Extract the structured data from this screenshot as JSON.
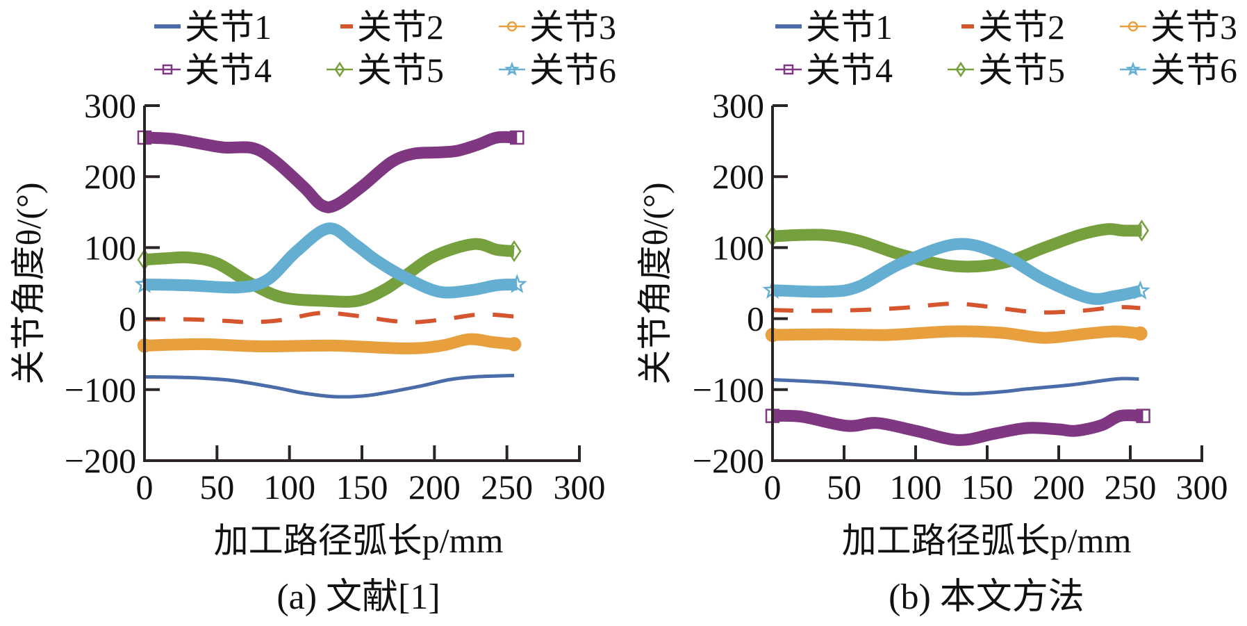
{
  "figure": {
    "panels": [
      "(a) 文献[1]",
      "(b) 本文方法"
    ]
  },
  "chart_data": [
    {
      "type": "line",
      "title": "(a) 文献[1]",
      "xlabel": "加工路径弧长p/mm",
      "ylabel": "关节角度θ/(°)",
      "xlim": [
        0,
        300
      ],
      "ylim": [
        -200,
        300
      ],
      "xticks": [
        "0",
        "50",
        "100",
        "150",
        "200",
        "250",
        "300"
      ],
      "yticks": [
        "300",
        "200",
        "100",
        "0",
        "−100",
        "−200"
      ],
      "grid": false,
      "legend_position": "top",
      "series": [
        {
          "name": "关节1",
          "color": "#4A6DAA",
          "style": "solid",
          "marker": "none",
          "x": [
            0,
            30,
            60,
            90,
            110,
            132,
            155,
            188,
            210,
            228,
            255
          ],
          "y": [
            -82,
            -83,
            -87,
            -97,
            -105,
            -110,
            -108,
            -96,
            -86,
            -82,
            -80
          ]
        },
        {
          "name": "关节2",
          "color": "#D5562E",
          "style": "dashed",
          "marker": "none",
          "x": [
            0,
            30,
            55,
            73,
            95,
            122,
            150,
            170,
            187,
            210,
            232,
            255
          ],
          "y": [
            -1,
            -1,
            -3,
            -5,
            -2,
            8,
            3,
            -3,
            -5,
            0,
            6,
            3
          ]
        },
        {
          "name": "关节3",
          "color": "#E8A03E",
          "style": "solid",
          "marker": "circle",
          "x": [
            0,
            40,
            80,
            130,
            180,
            205,
            224,
            240,
            255
          ],
          "y": [
            -38,
            -36,
            -39,
            -38,
            -42,
            -38,
            -29,
            -33,
            -36
          ]
        },
        {
          "name": "关节4",
          "color": "#7E3780",
          "style": "solid",
          "marker": "square",
          "x": [
            0,
            20,
            40,
            55,
            75,
            90,
            110,
            122,
            132,
            150,
            170,
            185,
            200,
            215,
            230,
            243,
            257
          ],
          "y": [
            255,
            253,
            246,
            241,
            240,
            222,
            185,
            160,
            160,
            186,
            220,
            232,
            234,
            236,
            245,
            255,
            255
          ]
        },
        {
          "name": "关节5",
          "color": "#76A03E",
          "style": "solid",
          "marker": "diamond",
          "x": [
            0,
            15,
            31,
            50,
            73,
            95,
            124,
            147,
            165,
            179,
            200,
            227,
            243,
            255
          ],
          "y": [
            83,
            85,
            86,
            78,
            50,
            30,
            25,
            25,
            40,
            59,
            88,
            105,
            97,
            95
          ]
        },
        {
          "name": "关节6",
          "color": "#64AED2",
          "style": "solid",
          "marker": "star",
          "x": [
            0,
            30,
            65,
            85,
            105,
            127,
            145,
            160,
            179,
            203,
            225,
            243,
            257
          ],
          "y": [
            48,
            47,
            44,
            55,
            95,
            127,
            105,
            82,
            59,
            38,
            40,
            47,
            48
          ]
        }
      ]
    },
    {
      "type": "line",
      "title": "(b) 本文方法",
      "xlabel": "加工路径弧长p/mm",
      "ylabel": "关节角度θ/(°)",
      "xlim": [
        0,
        300
      ],
      "ylim": [
        -200,
        300
      ],
      "xticks": [
        "0",
        "50",
        "100",
        "150",
        "200",
        "250",
        "300"
      ],
      "yticks": [
        "300",
        "200",
        "100",
        "0",
        "−100",
        "−200"
      ],
      "grid": false,
      "legend_position": "top",
      "series": [
        {
          "name": "关节1",
          "color": "#4A6DAA",
          "style": "solid",
          "marker": "none",
          "x": [
            0,
            40,
            80,
            110,
            135,
            160,
            178,
            210,
            240,
            256
          ],
          "y": [
            -86,
            -90,
            -97,
            -103,
            -106,
            -103,
            -99,
            -93,
            -85,
            -85
          ]
        },
        {
          "name": "关节2",
          "color": "#D5562E",
          "style": "dashed",
          "marker": "none",
          "x": [
            0,
            30,
            60,
            90,
            125,
            150,
            185,
            215,
            240,
            257
          ],
          "y": [
            12,
            11,
            12,
            15,
            21,
            17,
            9,
            11,
            16,
            15
          ]
        },
        {
          "name": "关节3",
          "color": "#E8A03E",
          "style": "solid",
          "marker": "circle",
          "x": [
            0,
            40,
            80,
            125,
            160,
            190,
            220,
            240,
            257
          ],
          "y": [
            -23,
            -22,
            -23,
            -18,
            -20,
            -27,
            -21,
            -18,
            -21
          ]
        },
        {
          "name": "关节4",
          "color": "#7E3780",
          "style": "solid",
          "marker": "square",
          "x": [
            0,
            20,
            52,
            73,
            100,
            130,
            155,
            178,
            200,
            212,
            230,
            243,
            259
          ],
          "y": [
            -137,
            -138,
            -151,
            -147,
            -158,
            -171,
            -162,
            -154,
            -156,
            -158,
            -150,
            -137,
            -137
          ]
        },
        {
          "name": "关节5",
          "color": "#76A03E",
          "style": "solid",
          "marker": "diamond",
          "x": [
            0,
            34,
            60,
            90,
            127,
            160,
            190,
            215,
            234,
            245,
            258
          ],
          "y": [
            116,
            118,
            110,
            90,
            74,
            78,
            100,
            118,
            126,
            124,
            124
          ]
        },
        {
          "name": "关节6",
          "color": "#64AED2",
          "style": "solid",
          "marker": "star",
          "x": [
            0,
            38,
            60,
            90,
            129,
            160,
            190,
            221,
            240,
            257
          ],
          "y": [
            40,
            38,
            45,
            78,
            105,
            90,
            55,
            29,
            32,
            39
          ]
        }
      ]
    }
  ]
}
